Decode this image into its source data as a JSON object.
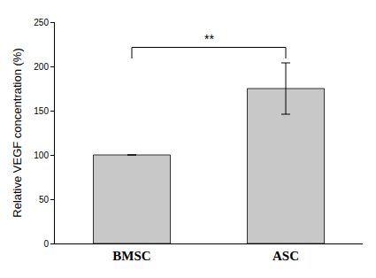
{
  "chart_data": {
    "type": "bar",
    "categories": [
      "BMSC",
      "ASC"
    ],
    "values": [
      100,
      175
    ],
    "errors": [
      null,
      29
    ],
    "color": "#c8c8c8",
    "y_label": "Relative VEGF concentration (%)",
    "ylim": [
      0,
      250
    ],
    "yticks": [
      0,
      50,
      100,
      150,
      200,
      250
    ],
    "grid": false,
    "annotations": [
      {
        "text": "**",
        "between": [
          "BMSC",
          "ASC"
        ]
      }
    ]
  }
}
